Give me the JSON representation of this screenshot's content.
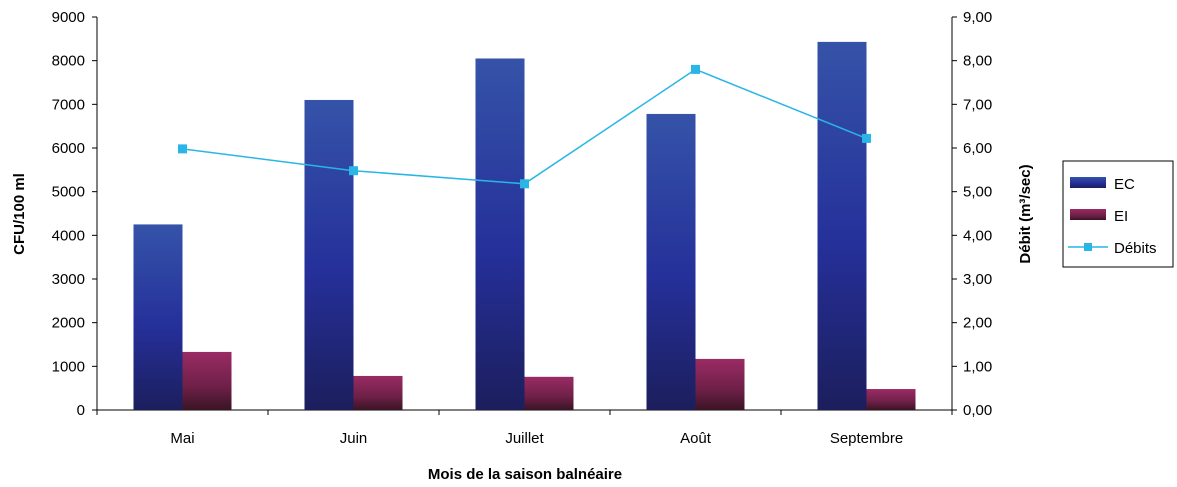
{
  "chart_data": {
    "type": "bar",
    "categories": [
      "Mai",
      "Juin",
      "Juillet",
      "Août",
      "Septembre"
    ],
    "series": [
      {
        "name": "EC",
        "type": "bar",
        "axis": "left",
        "values": [
          4250,
          7100,
          8050,
          6780,
          8430
        ]
      },
      {
        "name": "EI",
        "type": "bar",
        "axis": "left",
        "values": [
          1330,
          780,
          760,
          1170,
          480
        ]
      },
      {
        "name": "Débits",
        "type": "line",
        "axis": "right",
        "values": [
          5.98,
          5.48,
          5.18,
          7.8,
          6.22
        ]
      }
    ],
    "xlabel": "Mois de la saison balnéaire",
    "ylabel": "CFU/100 ml",
    "y2label": "Débit (m³/sec)",
    "ylim": [
      0,
      9000
    ],
    "y2lim": [
      0,
      9
    ],
    "yticks": [
      "0",
      "1000",
      "2000",
      "3000",
      "4000",
      "5000",
      "6000",
      "7000",
      "8000",
      "9000"
    ],
    "y2ticks": [
      "0,00",
      "1,00",
      "2,00",
      "3,00",
      "4,00",
      "5,00",
      "6,00",
      "7,00",
      "8,00",
      "9,00"
    ],
    "legend_position": "right",
    "grid": false,
    "colors": {
      "EC": "#2b3f9a",
      "EI": "#7a2450",
      "Débits": "#29b6e6"
    }
  }
}
